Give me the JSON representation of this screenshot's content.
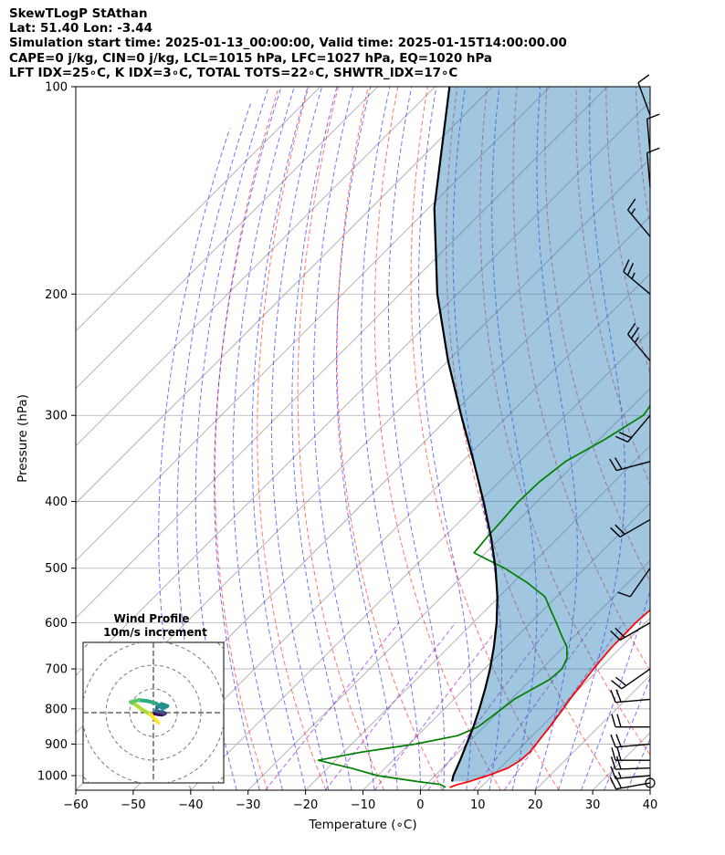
{
  "header": {
    "line1": "SkewTLogP StAthan",
    "line2": "Lat: 51.40   Lon: -3.44",
    "line3": "Simulation start time: 2025-01-13_00:00:00, Valid time: 2025-01-15T14:00:00.00",
    "line4": "CAPE=0 j/kg, CIN=0 j/kg, LCL=1015 hPa, LFC=1027 hPa, EQ=1020 hPa",
    "line5": "LFT IDX=25∘C, K IDX=3∘C, TOTAL TOTS=22∘C, SHWTR_IDX=17∘C"
  },
  "chart_data": {
    "type": "line",
    "title": "SkewTLogP StAthan",
    "xlabel": "Temperature (∘C)",
    "ylabel": "Pressure (hPa)",
    "xlim": [
      -60,
      40
    ],
    "ylim": [
      1050,
      100
    ],
    "y_scale": "log",
    "x_ticks": [
      "−60",
      "−50",
      "−40",
      "−30",
      "−20",
      "−10",
      "0",
      "10",
      "20",
      "30",
      "40"
    ],
    "x_tick_values": [
      -60,
      -50,
      -40,
      -30,
      -20,
      -10,
      0,
      10,
      20,
      30,
      40
    ],
    "y_ticks": [
      "1000",
      "900",
      "800",
      "700",
      "600",
      "500",
      "400",
      "300",
      "200",
      "100"
    ],
    "y_tick_values": [
      1000,
      900,
      800,
      700,
      600,
      500,
      400,
      300,
      200,
      100
    ],
    "grid": true,
    "colors": {
      "temperature": "#ff0000",
      "dewpoint": "#008000",
      "parcel": "#000000",
      "shade": "#1f77b4",
      "dry_adiabats": "#ff0000",
      "moist_adiabats": "#0000ff",
      "mixing_ratio": "#9400d3",
      "isotherms": "#999999"
    },
    "series": [
      {
        "key": "temperature",
        "p": [
          1040,
          1030,
          1020,
          1010,
          1000,
          975,
          950,
          925,
          900,
          875,
          850,
          825,
          800,
          775,
          750,
          725,
          700,
          675,
          650,
          625,
          600,
          575,
          550,
          525,
          500,
          475,
          450,
          425,
          400,
          375,
          350,
          325,
          300,
          275,
          250,
          225,
          200,
          190,
          180,
          170,
          160,
          150,
          140,
          130,
          120,
          110,
          100
        ],
        "t": [
          4.6,
          5.5,
          7.0,
          8.0,
          9.2,
          11.4,
          12.2,
          12.4,
          12.1,
          11.8,
          11.5,
          11.1,
          10.7,
          10.2,
          9.8,
          9.4,
          9.0,
          8.7,
          8.4,
          8.4,
          8.3,
          8.6,
          9.1,
          9.3,
          9.0,
          7.8,
          5.6,
          3.3,
          1.2,
          -1.2,
          -3.5,
          -5.8,
          -8.0,
          -10.7,
          -14.2,
          -17.7,
          -21.7,
          -22.0,
          -21.9,
          -22.6,
          -23.4,
          -24.5,
          -25.9,
          -27.5,
          -29.5,
          -32.0,
          -35.0
        ]
      },
      {
        "key": "dewpoint",
        "p": [
          1040,
          1030,
          1020,
          1000,
          975,
          950,
          925,
          900,
          875,
          850,
          825,
          800,
          775,
          750,
          725,
          700,
          675,
          650,
          625,
          600,
          575,
          550,
          525,
          500,
          475,
          450,
          425,
          400,
          375,
          350,
          325,
          300,
          275,
          250,
          225,
          200,
          190,
          180,
          170,
          160,
          150,
          140,
          130,
          120,
          110,
          100
        ],
        "t": [
          3.9,
          2.5,
          -2.0,
          -10.0,
          -16.0,
          -23.0,
          -17.0,
          -9.0,
          -3.0,
          -1.0,
          -0.5,
          0.0,
          0.5,
          1.8,
          3.2,
          3.5,
          2.5,
          0.5,
          -2.5,
          -5.5,
          -8.7,
          -12.0,
          -17.5,
          -24.0,
          -32.0,
          -32.5,
          -32.8,
          -33.2,
          -33.0,
          -32.0,
          -29.0,
          -26.5,
          -27.8,
          -30.5,
          -33.3,
          -37.0,
          -42.0,
          -44.5,
          -42.5,
          -40.0,
          -40.2,
          -42.0,
          -43.0,
          -43.5,
          -44.3,
          -45.5
        ]
      },
      {
        "key": "parcel",
        "p": [
          1020,
          1000,
          950,
          900,
          850,
          800,
          750,
          700,
          650,
          600,
          550,
          500,
          450,
          400,
          350,
          300,
          250,
          200,
          150,
          100
        ],
        "t": [
          4.0,
          3.2,
          1.7,
          0.0,
          -1.8,
          -3.9,
          -6.3,
          -9.0,
          -12.2,
          -15.9,
          -20.3,
          -25.6,
          -31.9,
          -39.3,
          -48.0,
          -58.2,
          -70.0,
          -83.5,
          -99.0,
          -117.5
        ]
      }
    ],
    "wind_barbs": [
      {
        "p": 1025,
        "speed_kt": 20,
        "dir_deg": 260
      },
      {
        "p": 1000,
        "speed_kt": 15,
        "dir_deg": 265
      },
      {
        "p": 975,
        "speed_kt": 20,
        "dir_deg": 268
      },
      {
        "p": 950,
        "speed_kt": 20,
        "dir_deg": 270
      },
      {
        "p": 900,
        "speed_kt": 20,
        "dir_deg": 265
      },
      {
        "p": 850,
        "speed_kt": 20,
        "dir_deg": 270
      },
      {
        "p": 775,
        "speed_kt": 20,
        "dir_deg": 265
      },
      {
        "p": 700,
        "speed_kt": 20,
        "dir_deg": 235
      },
      {
        "p": 600,
        "speed_kt": 20,
        "dir_deg": 240
      },
      {
        "p": 500,
        "speed_kt": 10,
        "dir_deg": 215
      },
      {
        "p": 425,
        "speed_kt": 20,
        "dir_deg": 240
      },
      {
        "p": 350,
        "speed_kt": 20,
        "dir_deg": 255
      },
      {
        "p": 300,
        "speed_kt": 20,
        "dir_deg": 220
      },
      {
        "p": 250,
        "speed_kt": 25,
        "dir_deg": 320
      },
      {
        "p": 200,
        "speed_kt": 25,
        "dir_deg": 310
      },
      {
        "p": 165,
        "speed_kt": 15,
        "dir_deg": 320
      },
      {
        "p": 140,
        "speed_kt": 10,
        "dir_deg": 355
      },
      {
        "p": 125,
        "speed_kt": 10,
        "dir_deg": 355
      },
      {
        "p": 110,
        "speed_kt": 10,
        "dir_deg": 340
      }
    ],
    "wind_profile_inset": {
      "title": "Wind Profile",
      "subtitle": "10m/s increment",
      "rings_ms": [
        10,
        20,
        30,
        40
      ],
      "hodograph_u": [
        0.4,
        1.5,
        2.5,
        3.2,
        3.5,
        3.0,
        2.0,
        0.8,
        1.2,
        2.5,
        4.2,
        2.8,
        0.8,
        -1.8,
        -4.5,
        -6.8,
        -5.5,
        -3.5,
        -1.0,
        0.5,
        1.5
      ],
      "hodograph_v": [
        -0.3,
        -0.5,
        -0.6,
        -0.4,
        -0.2,
        0.0,
        0.2,
        0.5,
        1.8,
        2.6,
        2.0,
        1.2,
        2.8,
        3.5,
        3.8,
        3.2,
        2.5,
        1.0,
        -0.5,
        -2.0,
        -3.0
      ]
    }
  }
}
